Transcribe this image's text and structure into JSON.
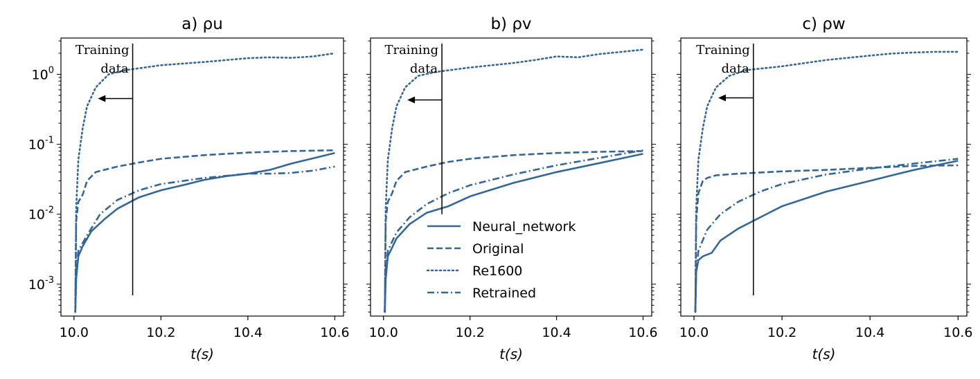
{
  "chart_data": [
    {
      "type": "line",
      "panel": "a",
      "title": "a) ρu",
      "xlabel": "t(s)",
      "ylabel": "",
      "yscale": "log",
      "xlim": [
        9.97,
        10.62
      ],
      "ylim": [
        0.00035,
        3.3
      ],
      "xticks": [
        10.0,
        10.2,
        10.4,
        10.6
      ],
      "xtick_labels": [
        "10.0",
        "10.2",
        "10.4",
        "10.6"
      ],
      "yticks": [
        0.001,
        0.01,
        0.1,
        1
      ],
      "ytick_labels": [
        "10^-3",
        "10^-2",
        "10^-1",
        "10^0"
      ],
      "annotation": {
        "text_line1": "Training",
        "text_line2": "data",
        "x": 10.135,
        "arrow_to_x": 10.055,
        "arrow_y": 0.45
      },
      "series": [
        {
          "name": "Neural_network",
          "style": "solid",
          "points": [
            [
              10.003,
              0.0004
            ],
            [
              10.005,
              0.0012
            ],
            [
              10.01,
              0.0025
            ],
            [
              10.02,
              0.0035
            ],
            [
              10.04,
              0.0057
            ],
            [
              10.07,
              0.0085
            ],
            [
              10.1,
              0.012
            ],
            [
              10.15,
              0.0175
            ],
            [
              10.2,
              0.022
            ],
            [
              10.25,
              0.026
            ],
            [
              10.3,
              0.031
            ],
            [
              10.35,
              0.035
            ],
            [
              10.4,
              0.038
            ],
            [
              10.45,
              0.043
            ],
            [
              10.5,
              0.053
            ],
            [
              10.55,
              0.063
            ],
            [
              10.6,
              0.075
            ]
          ]
        },
        {
          "name": "Original",
          "style": "dashed",
          "points": [
            [
              10.003,
              0.0004
            ],
            [
              10.005,
              0.008
            ],
            [
              10.01,
              0.015
            ],
            [
              10.02,
              0.019
            ],
            [
              10.03,
              0.03
            ],
            [
              10.05,
              0.04
            ],
            [
              10.1,
              0.048
            ],
            [
              10.15,
              0.055
            ],
            [
              10.2,
              0.062
            ],
            [
              10.3,
              0.07
            ],
            [
              10.4,
              0.076
            ],
            [
              10.5,
              0.08
            ],
            [
              10.6,
              0.082
            ]
          ]
        },
        {
          "name": "Re1600",
          "style": "dotted",
          "points": [
            [
              10.003,
              0.0004
            ],
            [
              10.005,
              0.012
            ],
            [
              10.01,
              0.06
            ],
            [
              10.02,
              0.17
            ],
            [
              10.03,
              0.35
            ],
            [
              10.05,
              0.65
            ],
            [
              10.08,
              1.0
            ],
            [
              10.12,
              1.15
            ],
            [
              10.2,
              1.35
            ],
            [
              10.3,
              1.5
            ],
            [
              10.4,
              1.7
            ],
            [
              10.45,
              1.75
            ],
            [
              10.5,
              1.72
            ],
            [
              10.55,
              1.8
            ],
            [
              10.6,
              2.0
            ]
          ]
        },
        {
          "name": "Retrained",
          "style": "dashdot",
          "points": [
            [
              10.003,
              0.0004
            ],
            [
              10.005,
              0.0015
            ],
            [
              10.01,
              0.003
            ],
            [
              10.03,
              0.005
            ],
            [
              10.06,
              0.01
            ],
            [
              10.1,
              0.016
            ],
            [
              10.15,
              0.022
            ],
            [
              10.2,
              0.027
            ],
            [
              10.3,
              0.033
            ],
            [
              10.4,
              0.038
            ],
            [
              10.45,
              0.038
            ],
            [
              10.5,
              0.039
            ],
            [
              10.55,
              0.042
            ],
            [
              10.6,
              0.048
            ]
          ]
        }
      ]
    },
    {
      "type": "line",
      "panel": "b",
      "title": "b) ρv",
      "xlabel": "t(s)",
      "ylabel": "",
      "yscale": "log",
      "xlim": [
        9.97,
        10.62
      ],
      "ylim": [
        0.00035,
        3.3
      ],
      "xticks": [
        10.0,
        10.2,
        10.4,
        10.6
      ],
      "xtick_labels": [
        "10.0",
        "10.2",
        "10.4",
        "10.6"
      ],
      "annotation": {
        "text_line1": "Training",
        "text_line2": "data",
        "x": 10.135,
        "arrow_to_x": 10.055,
        "arrow_y": 0.43
      },
      "series": [
        {
          "name": "Neural_network",
          "style": "solid",
          "points": [
            [
              10.003,
              0.0004
            ],
            [
              10.005,
              0.0012
            ],
            [
              10.01,
              0.0025
            ],
            [
              10.03,
              0.0045
            ],
            [
              10.06,
              0.0072
            ],
            [
              10.1,
              0.0105
            ],
            [
              10.15,
              0.013
            ],
            [
              10.2,
              0.018
            ],
            [
              10.3,
              0.028
            ],
            [
              10.4,
              0.04
            ],
            [
              10.5,
              0.054
            ],
            [
              10.6,
              0.073
            ]
          ]
        },
        {
          "name": "Original",
          "style": "dashed",
          "points": [
            [
              10.003,
              0.0004
            ],
            [
              10.005,
              0.008
            ],
            [
              10.01,
              0.015
            ],
            [
              10.02,
              0.02
            ],
            [
              10.03,
              0.03
            ],
            [
              10.05,
              0.04
            ],
            [
              10.1,
              0.048
            ],
            [
              10.15,
              0.056
            ],
            [
              10.2,
              0.062
            ],
            [
              10.3,
              0.07
            ],
            [
              10.4,
              0.075
            ],
            [
              10.5,
              0.078
            ],
            [
              10.6,
              0.08
            ]
          ]
        },
        {
          "name": "Re1600",
          "style": "dotted",
          "points": [
            [
              10.003,
              0.0004
            ],
            [
              10.005,
              0.012
            ],
            [
              10.01,
              0.06
            ],
            [
              10.02,
              0.17
            ],
            [
              10.03,
              0.35
            ],
            [
              10.05,
              0.65
            ],
            [
              10.08,
              0.95
            ],
            [
              10.12,
              1.08
            ],
            [
              10.2,
              1.25
            ],
            [
              10.3,
              1.45
            ],
            [
              10.35,
              1.6
            ],
            [
              10.4,
              1.8
            ],
            [
              10.45,
              1.75
            ],
            [
              10.5,
              1.95
            ],
            [
              10.6,
              2.25
            ]
          ]
        },
        {
          "name": "Retrained",
          "style": "dashdot",
          "points": [
            [
              10.003,
              0.0004
            ],
            [
              10.005,
              0.0015
            ],
            [
              10.01,
              0.003
            ],
            [
              10.03,
              0.0055
            ],
            [
              10.06,
              0.009
            ],
            [
              10.1,
              0.014
            ],
            [
              10.15,
              0.02
            ],
            [
              10.2,
              0.026
            ],
            [
              10.3,
              0.037
            ],
            [
              10.4,
              0.05
            ],
            [
              10.5,
              0.064
            ],
            [
              10.6,
              0.082
            ]
          ]
        }
      ]
    },
    {
      "type": "line",
      "panel": "c",
      "title": "c) ρw",
      "xlabel": "t(s)",
      "ylabel": "",
      "yscale": "log",
      "xlim": [
        9.97,
        10.62
      ],
      "ylim": [
        0.00035,
        3.3
      ],
      "xticks": [
        10.0,
        10.2,
        10.4,
        10.6
      ],
      "xtick_labels": [
        "10.0",
        "10.2",
        "10.4",
        "10.6"
      ],
      "annotation": {
        "text_line1": "Training",
        "text_line2": "data",
        "x": 10.135,
        "arrow_to_x": 10.055,
        "arrow_y": 0.46
      },
      "series": [
        {
          "name": "Neural_network",
          "style": "solid",
          "points": [
            [
              10.003,
              0.0004
            ],
            [
              10.005,
              0.0015
            ],
            [
              10.01,
              0.0022
            ],
            [
              10.02,
              0.0025
            ],
            [
              10.04,
              0.0028
            ],
            [
              10.06,
              0.0042
            ],
            [
              10.1,
              0.0062
            ],
            [
              10.15,
              0.009
            ],
            [
              10.2,
              0.013
            ],
            [
              10.3,
              0.021
            ],
            [
              10.4,
              0.03
            ],
            [
              10.45,
              0.036
            ],
            [
              10.5,
              0.043
            ],
            [
              10.55,
              0.05
            ],
            [
              10.6,
              0.058
            ]
          ]
        },
        {
          "name": "Original",
          "style": "dashed",
          "points": [
            [
              10.003,
              0.0004
            ],
            [
              10.005,
              0.008
            ],
            [
              10.01,
              0.02
            ],
            [
              10.02,
              0.03
            ],
            [
              10.03,
              0.033
            ],
            [
              10.05,
              0.036
            ],
            [
              10.1,
              0.038
            ],
            [
              10.2,
              0.041
            ],
            [
              10.3,
              0.043
            ],
            [
              10.4,
              0.046
            ],
            [
              10.5,
              0.049
            ],
            [
              10.6,
              0.05
            ]
          ]
        },
        {
          "name": "Re1600",
          "style": "dotted",
          "points": [
            [
              10.003,
              0.0004
            ],
            [
              10.005,
              0.012
            ],
            [
              10.01,
              0.06
            ],
            [
              10.02,
              0.17
            ],
            [
              10.03,
              0.35
            ],
            [
              10.05,
              0.65
            ],
            [
              10.08,
              0.95
            ],
            [
              10.12,
              1.15
            ],
            [
              10.2,
              1.3
            ],
            [
              10.3,
              1.6
            ],
            [
              10.4,
              1.85
            ],
            [
              10.45,
              1.98
            ],
            [
              10.5,
              2.05
            ],
            [
              10.55,
              2.1
            ],
            [
              10.6,
              2.1
            ]
          ]
        },
        {
          "name": "Retrained",
          "style": "dashdot",
          "points": [
            [
              10.003,
              0.0004
            ],
            [
              10.005,
              0.0015
            ],
            [
              10.01,
              0.003
            ],
            [
              10.03,
              0.006
            ],
            [
              10.06,
              0.01
            ],
            [
              10.1,
              0.015
            ],
            [
              10.15,
              0.021
            ],
            [
              10.2,
              0.027
            ],
            [
              10.3,
              0.037
            ],
            [
              10.4,
              0.045
            ],
            [
              10.5,
              0.053
            ],
            [
              10.6,
              0.062
            ]
          ]
        }
      ]
    }
  ],
  "legend": {
    "panel": "b",
    "location": "lower-right",
    "entries": [
      {
        "label": "Neural_network",
        "style": "solid"
      },
      {
        "label": "Original",
        "style": "dashed"
      },
      {
        "label": "Re1600",
        "style": "dotted"
      },
      {
        "label": "Retrained",
        "style": "dashdot"
      }
    ]
  },
  "colors": {
    "series": "#336699",
    "axes": "#000000",
    "background": "#ffffff"
  }
}
